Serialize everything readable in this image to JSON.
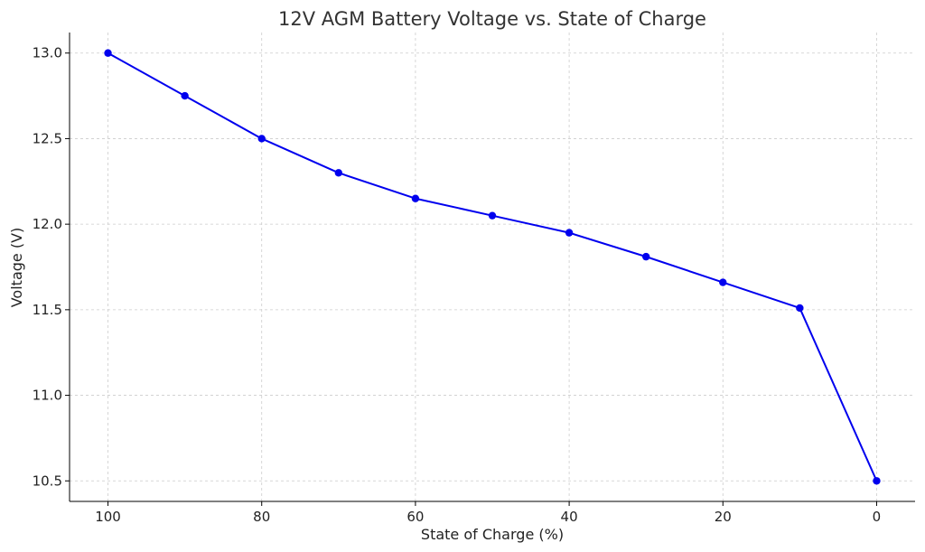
{
  "chart_data": {
    "type": "line",
    "title": "12V AGM Battery Voltage vs. State of Charge",
    "xlabel": "State of Charge (%)",
    "ylabel": "Voltage (V)",
    "x_reversed": true,
    "xlim": [
      105,
      -5
    ],
    "ylim": [
      10.38,
      13.12
    ],
    "x_ticks": [
      100,
      80,
      60,
      40,
      20,
      0
    ],
    "y_ticks": [
      10.5,
      11.0,
      11.5,
      12.0,
      12.5,
      13.0
    ],
    "y_tick_labels": [
      "10.5",
      "11.0",
      "11.5",
      "12.0",
      "12.5",
      "13.0"
    ],
    "grid": true,
    "series": [
      {
        "color": "#0000ee",
        "marker": "circle",
        "x": [
          100,
          90,
          80,
          70,
          60,
          50,
          40,
          30,
          20,
          10,
          0
        ],
        "y": [
          13.0,
          12.75,
          12.5,
          12.3,
          12.15,
          12.05,
          11.95,
          11.81,
          11.66,
          11.51,
          10.5
        ]
      }
    ]
  }
}
